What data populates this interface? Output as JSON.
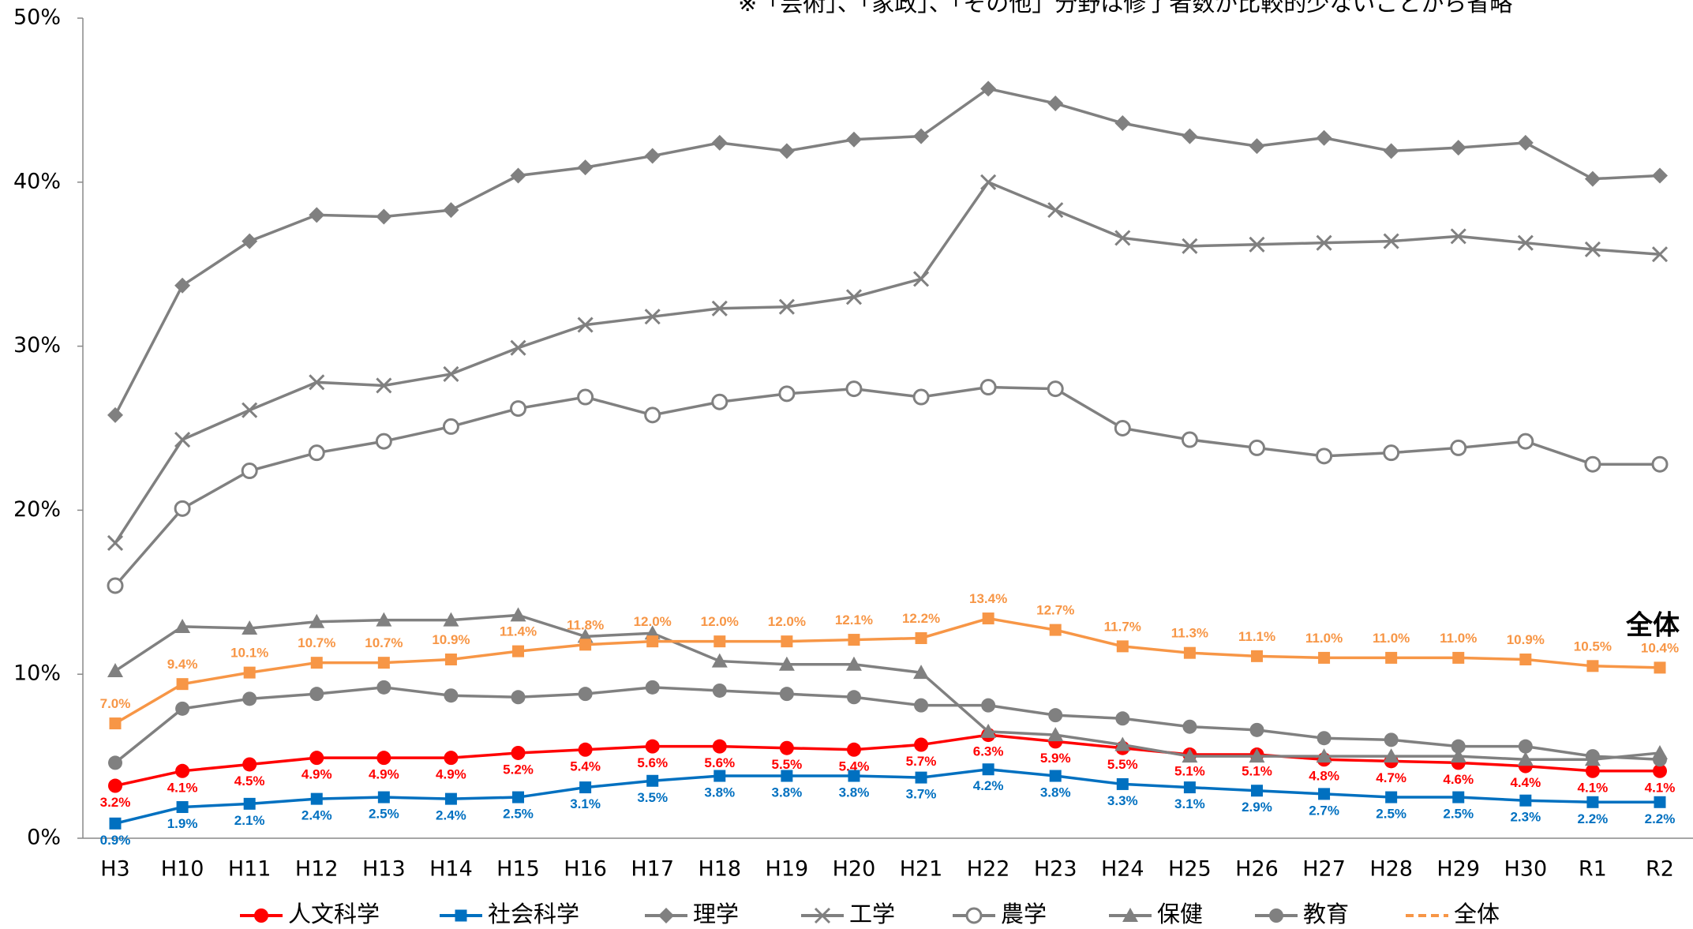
{
  "chart_data": {
    "type": "line",
    "annotation_top": "※「芸術」、「家政」、「その他」分野は修了者数が比較的少ないことから省略",
    "annotation_right": "全体",
    "categories": [
      "H3",
      "H10",
      "H11",
      "H12",
      "H13",
      "H14",
      "H15",
      "H16",
      "H17",
      "H18",
      "H19",
      "H20",
      "H21",
      "H22",
      "H23",
      "H24",
      "H25",
      "H26",
      "H27",
      "H28",
      "H29",
      "H30",
      "R1",
      "R2"
    ],
    "ylim": [
      0,
      50
    ],
    "yticks": [
      {
        "value": 0,
        "label": "0%"
      },
      {
        "value": 10,
        "label": "10%"
      },
      {
        "value": 20,
        "label": "20%"
      },
      {
        "value": 30,
        "label": "30%"
      },
      {
        "value": 40,
        "label": "40%"
      },
      {
        "value": 50,
        "label": "50%"
      }
    ],
    "grid": false,
    "series": [
      {
        "name": "人文科学",
        "color": "#ff0000",
        "marker": "circle",
        "label_pos": "below",
        "values": [
          3.2,
          4.1,
          4.5,
          4.9,
          4.9,
          4.9,
          5.2,
          5.4,
          5.6,
          5.6,
          5.5,
          5.4,
          5.7,
          6.3,
          5.9,
          5.5,
          5.1,
          5.1,
          4.8,
          4.7,
          4.6,
          4.4,
          4.1,
          4.1
        ],
        "value_labels": [
          "3.2%",
          "4.1%",
          "4.5%",
          "4.9%",
          "4.9%",
          "4.9%",
          "5.2%",
          "5.4%",
          "5.6%",
          "5.6%",
          "5.5%",
          "5.4%",
          "5.7%",
          "6.3%",
          "5.9%",
          "5.5%",
          "5.1%",
          "5.1%",
          "4.8%",
          "4.7%",
          "4.6%",
          "4.4%",
          "4.1%",
          "4.1%"
        ]
      },
      {
        "name": "社会科学",
        "color": "#0070c0",
        "marker": "square",
        "label_pos": "below",
        "values": [
          0.9,
          1.9,
          2.1,
          2.4,
          2.5,
          2.4,
          2.5,
          3.1,
          3.5,
          3.8,
          3.8,
          3.8,
          3.7,
          4.2,
          3.8,
          3.3,
          3.1,
          2.9,
          2.7,
          2.5,
          2.5,
          2.3,
          2.2,
          2.2
        ],
        "value_labels": [
          "0.9%",
          "1.9%",
          "2.1%",
          "2.4%",
          "2.5%",
          "2.4%",
          "2.5%",
          "3.1%",
          "3.5%",
          "3.8%",
          "3.8%",
          "3.8%",
          "3.7%",
          "4.2%",
          "3.8%",
          "3.3%",
          "3.1%",
          "2.9%",
          "2.7%",
          "2.5%",
          "2.5%",
          "2.3%",
          "2.2%",
          "2.2%"
        ]
      },
      {
        "name": "理学",
        "color": "#808080",
        "marker": "diamond",
        "values": [
          25.8,
          33.7,
          36.4,
          38.0,
          37.9,
          38.3,
          40.4,
          40.9,
          41.6,
          42.4,
          41.9,
          42.6,
          42.8,
          45.7,
          44.8,
          43.6,
          42.8,
          42.2,
          42.7,
          41.9,
          42.1,
          42.4,
          40.2,
          40.4
        ]
      },
      {
        "name": "工学",
        "color": "#808080",
        "marker": "x",
        "values": [
          18.0,
          24.3,
          26.1,
          27.8,
          27.6,
          28.3,
          29.9,
          31.3,
          31.8,
          32.3,
          32.4,
          33.0,
          34.1,
          40.0,
          38.3,
          36.6,
          36.1,
          36.2,
          36.3,
          36.4,
          36.7,
          36.3,
          35.9,
          35.6
        ]
      },
      {
        "name": "農学",
        "color": "#808080",
        "marker": "hollow-circle",
        "values": [
          15.4,
          20.1,
          22.4,
          23.5,
          24.2,
          25.1,
          26.2,
          26.9,
          25.8,
          26.6,
          27.1,
          27.4,
          26.9,
          27.5,
          27.4,
          25.0,
          24.3,
          23.8,
          23.3,
          23.5,
          23.8,
          24.2,
          22.8,
          22.8
        ]
      },
      {
        "name": "保健",
        "color": "#808080",
        "marker": "triangle",
        "values": [
          10.2,
          12.9,
          12.8,
          13.2,
          13.3,
          13.3,
          13.6,
          12.3,
          12.5,
          10.8,
          10.6,
          10.6,
          10.1,
          6.5,
          6.3,
          5.7,
          5.0,
          5.0,
          5.0,
          5.0,
          5.0,
          4.8,
          4.8,
          5.2
        ]
      },
      {
        "name": "教育",
        "color": "#808080",
        "marker": "circle",
        "values": [
          4.6,
          7.9,
          8.5,
          8.8,
          9.2,
          8.7,
          8.6,
          8.8,
          9.2,
          9.0,
          8.8,
          8.6,
          8.1,
          8.1,
          7.5,
          7.3,
          6.8,
          6.6,
          6.1,
          6.0,
          5.6,
          5.6,
          5.0,
          4.8
        ]
      },
      {
        "name": "全体",
        "color": "#f79646",
        "marker": "square",
        "label_pos": "above",
        "legend_style": "dashed",
        "values": [
          7.0,
          9.4,
          10.1,
          10.7,
          10.7,
          10.9,
          11.4,
          11.8,
          12.0,
          12.0,
          12.0,
          12.1,
          12.2,
          13.4,
          12.7,
          11.7,
          11.3,
          11.1,
          11.0,
          11.0,
          11.0,
          10.9,
          10.5,
          10.4
        ],
        "value_labels": [
          "7.0%",
          "9.4%",
          "10.1%",
          "10.7%",
          "10.7%",
          "10.9%",
          "11.4%",
          "11.8%",
          "12.0%",
          "12.0%",
          "12.0%",
          "12.1%",
          "12.2%",
          "13.4%",
          "12.7%",
          "11.7%",
          "11.3%",
          "11.1%",
          "11.0%",
          "11.0%",
          "11.0%",
          "10.9%",
          "10.5%",
          "10.4%"
        ]
      }
    ]
  }
}
